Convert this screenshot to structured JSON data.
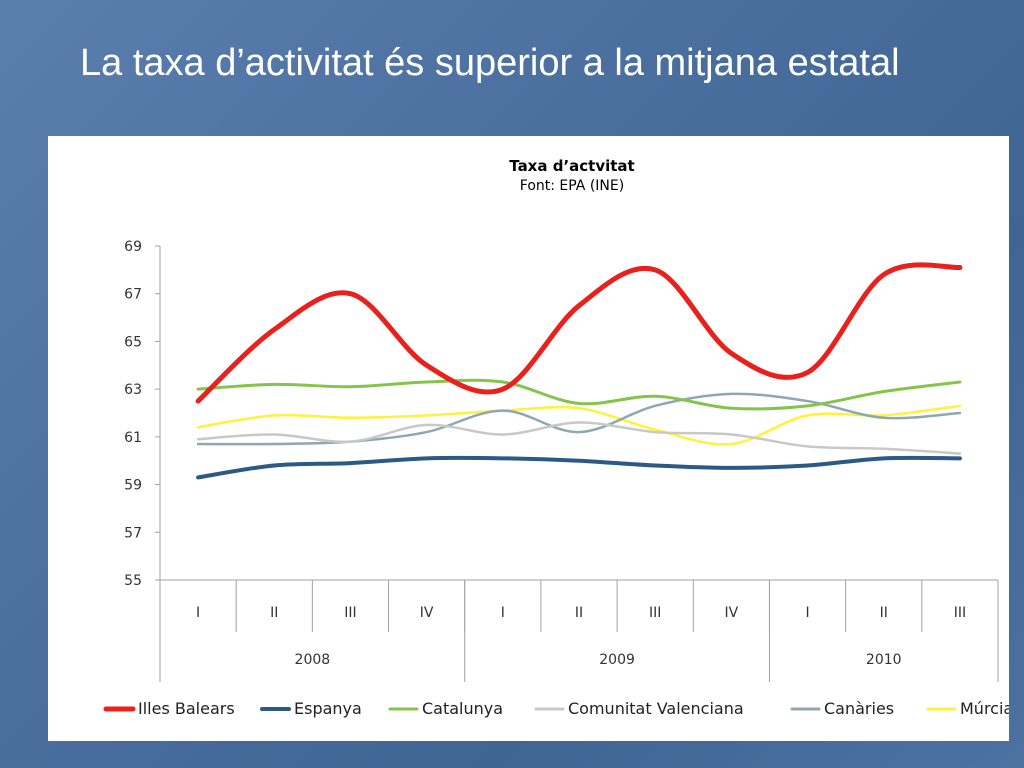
{
  "slide": {
    "title": "La taxa d’activitat és superior a la mitjana estatal"
  },
  "chart_data": {
    "type": "line",
    "title": "Taxa d’actvitat",
    "subtitle": "Font: EPA (INE)",
    "ylim": [
      55,
      69
    ],
    "yticks": [
      55,
      57,
      59,
      61,
      63,
      65,
      67,
      69
    ],
    "categories": [
      "I",
      "II",
      "III",
      "IV",
      "I",
      "II",
      "III",
      "IV",
      "I",
      "II",
      "III"
    ],
    "groups": [
      {
        "label": "2008",
        "span": 4
      },
      {
        "label": "2009",
        "span": 4
      },
      {
        "label": "2010",
        "span": 3
      }
    ],
    "legend_position": "bottom",
    "series": [
      {
        "name": "Illes Balears",
        "color": "#e8211d",
        "width": 5,
        "values": [
          62.5,
          65.5,
          67.0,
          64.0,
          63.0,
          66.5,
          68.0,
          64.5,
          63.7,
          67.8,
          68.1
        ]
      },
      {
        "name": "Espanya",
        "color": "#2b5a86",
        "width": 4,
        "values": [
          59.3,
          59.8,
          59.9,
          60.1,
          60.1,
          60.0,
          59.8,
          59.7,
          59.8,
          60.1,
          60.1
        ]
      },
      {
        "name": "Catalunya",
        "color": "#84c44a",
        "width": 3,
        "values": [
          63.0,
          63.2,
          63.1,
          63.3,
          63.3,
          62.4,
          62.7,
          62.2,
          62.3,
          62.9,
          63.3
        ]
      },
      {
        "name": "Comunitat Valenciana",
        "color": "#c8c8c8",
        "width": 2.5,
        "values": [
          60.9,
          61.1,
          60.8,
          61.5,
          61.1,
          61.6,
          61.2,
          61.1,
          60.6,
          60.5,
          60.3
        ]
      },
      {
        "name": "Canàries",
        "color": "#8ea7b0",
        "width": 2.5,
        "values": [
          60.7,
          60.7,
          60.8,
          61.2,
          62.1,
          61.2,
          62.3,
          62.8,
          62.5,
          61.8,
          62.0
        ]
      },
      {
        "name": "Múrcia",
        "color": "#fff23a",
        "width": 2.5,
        "values": [
          61.4,
          61.9,
          61.8,
          61.9,
          62.1,
          62.2,
          61.3,
          60.7,
          61.9,
          61.9,
          62.3
        ]
      }
    ]
  }
}
